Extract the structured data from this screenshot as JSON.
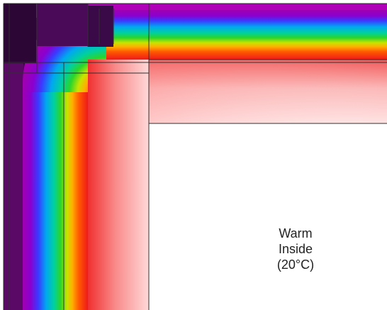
{
  "annotation": {
    "line1": "Warm",
    "line2": "Inside",
    "line3": "(20°C)"
  },
  "colors": {
    "background": "#ffffff",
    "cold": "#2a0a3a",
    "band_magenta": "#c000c0",
    "band_purple": "#7a22e6",
    "band_blue": "#1a5cff",
    "band_cyan": "#00b8d8",
    "band_green": "#2bd52b",
    "band_yellow": "#f4e400",
    "band_orange": "#ff8a00",
    "band_red": "#ef1a1a",
    "warm_pink": "#ffd6d6",
    "gridline": "#303030"
  }
}
